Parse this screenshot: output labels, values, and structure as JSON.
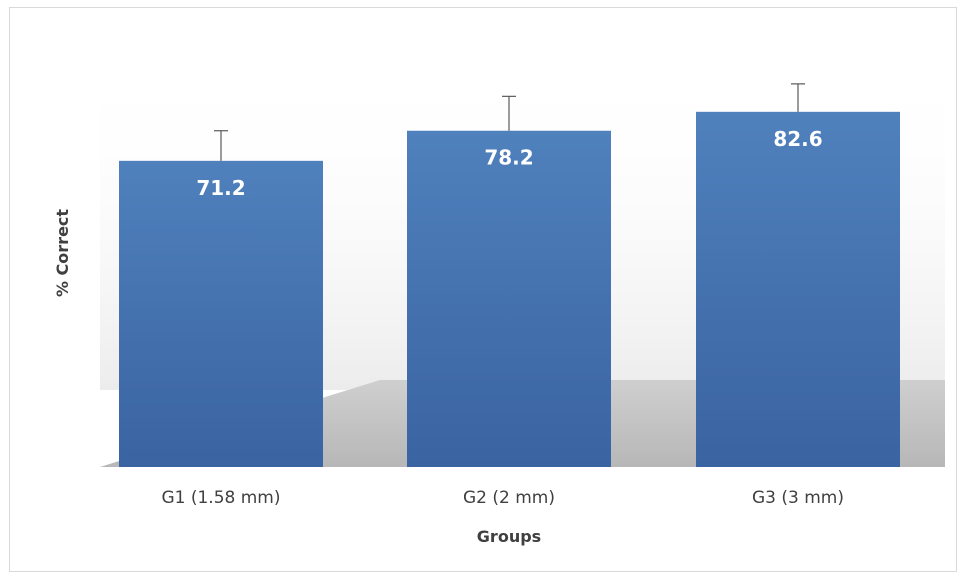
{
  "chart_data": {
    "type": "bar",
    "categories": [
      "G1 (1.58 mm)",
      "G2 (2 mm)",
      "G3 (3 mm)"
    ],
    "values": [
      71.2,
      78.2,
      82.6
    ],
    "error_plus": [
      7,
      8,
      6.5
    ],
    "value_labels": [
      "71.2",
      "78.2",
      "82.6"
    ],
    "xlabel": "Groups",
    "ylabel": "% Correct",
    "ylim": [
      0,
      100
    ],
    "grid": false,
    "legend": "none",
    "colors": {
      "bar_top": "#4f81bd",
      "bar_bottom": "#3a63a1",
      "error_bar": "#595959"
    }
  }
}
